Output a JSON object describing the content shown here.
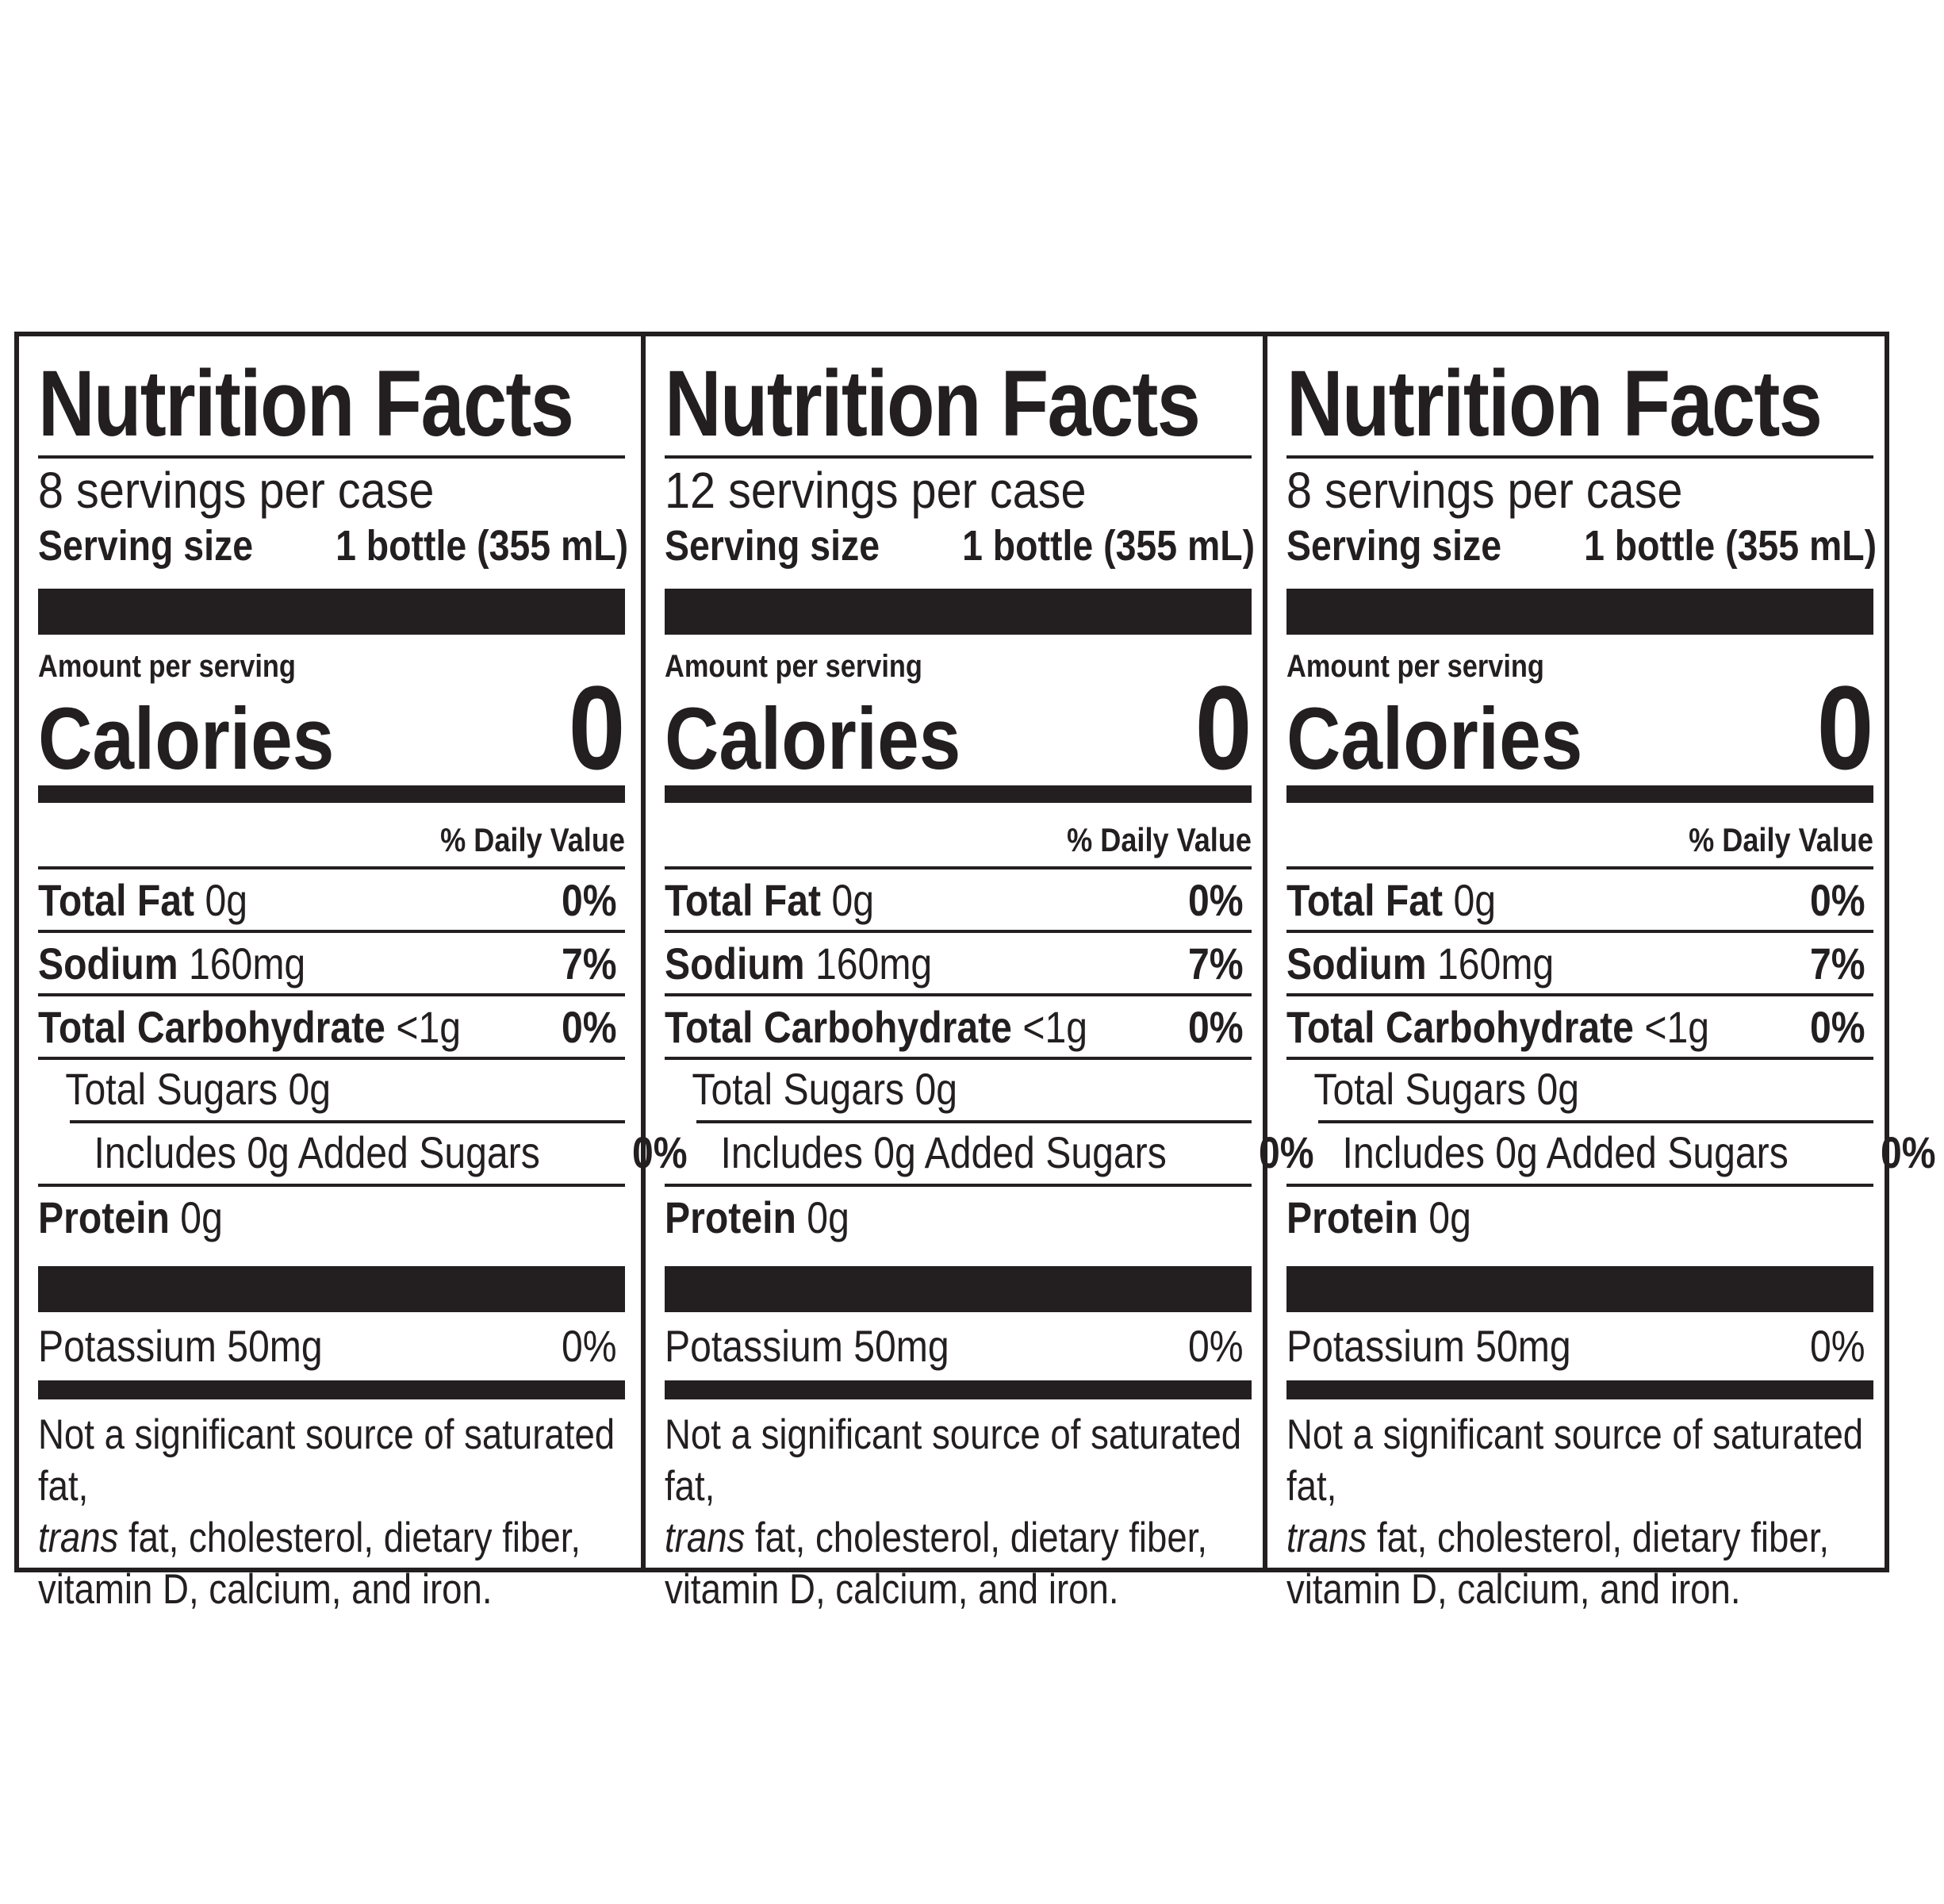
{
  "panels": [
    {
      "title": "Nutrition Facts",
      "servings_per_container": "8 servings per case",
      "serving_size_label": "Serving size",
      "serving_size_value": "1 bottle (355 mL)",
      "amount_per_serving": "Amount per serving",
      "calories_label": "Calories",
      "calories_value": "0",
      "daily_value_header": "% Daily Value",
      "total_fat": {
        "label": "Total Fat",
        "amount": "0g",
        "dv": "0%"
      },
      "sodium": {
        "label": "Sodium",
        "amount": "160mg",
        "dv": "7%"
      },
      "total_carbohydrate": {
        "label": "Total Carbohydrate",
        "amount": "<1g",
        "dv": "0%"
      },
      "total_sugars": {
        "label": "Total Sugars 0g"
      },
      "added_sugars": {
        "label": "Includes 0g Added Sugars",
        "dv": "0%"
      },
      "protein": {
        "label": "Protein",
        "amount": "0g"
      },
      "potassium": {
        "label": "Potassium 50mg",
        "dv": "0%"
      },
      "footnote_part1": "Not a significant source of saturated fat,",
      "footnote_trans": "trans",
      "footnote_part2": " fat, cholesterol, dietary fiber,",
      "footnote_part3": "vitamin D, calcium, and iron."
    },
    {
      "title": "Nutrition Facts",
      "servings_per_container": "12 servings per case",
      "serving_size_label": "Serving size",
      "serving_size_value": "1 bottle (355 mL)",
      "amount_per_serving": "Amount per serving",
      "calories_label": "Calories",
      "calories_value": "0",
      "daily_value_header": "% Daily Value",
      "total_fat": {
        "label": "Total Fat",
        "amount": "0g",
        "dv": "0%"
      },
      "sodium": {
        "label": "Sodium",
        "amount": "160mg",
        "dv": "7%"
      },
      "total_carbohydrate": {
        "label": "Total Carbohydrate",
        "amount": "<1g",
        "dv": "0%"
      },
      "total_sugars": {
        "label": "Total Sugars 0g"
      },
      "added_sugars": {
        "label": "Includes 0g Added Sugars",
        "dv": "0%"
      },
      "protein": {
        "label": "Protein",
        "amount": "0g"
      },
      "potassium": {
        "label": "Potassium 50mg",
        "dv": "0%"
      },
      "footnote_part1": "Not a significant source of saturated fat,",
      "footnote_trans": "trans",
      "footnote_part2": " fat, cholesterol, dietary fiber,",
      "footnote_part3": "vitamin D, calcium, and iron."
    },
    {
      "title": "Nutrition Facts",
      "servings_per_container": "8 servings per case",
      "serving_size_label": "Serving size",
      "serving_size_value": "1 bottle (355 mL)",
      "amount_per_serving": "Amount per serving",
      "calories_label": "Calories",
      "calories_value": "0",
      "daily_value_header": "% Daily Value",
      "total_fat": {
        "label": "Total Fat",
        "amount": "0g",
        "dv": "0%"
      },
      "sodium": {
        "label": "Sodium",
        "amount": "160mg",
        "dv": "7%"
      },
      "total_carbohydrate": {
        "label": "Total Carbohydrate",
        "amount": "<1g",
        "dv": "0%"
      },
      "total_sugars": {
        "label": "Total Sugars 0g"
      },
      "added_sugars": {
        "label": "Includes 0g Added Sugars",
        "dv": "0%"
      },
      "protein": {
        "label": "Protein",
        "amount": "0g"
      },
      "potassium": {
        "label": "Potassium 50mg",
        "dv": "0%"
      },
      "footnote_part1": "Not a significant source of saturated fat,",
      "footnote_trans": "trans",
      "footnote_part2": " fat, cholesterol, dietary fiber,",
      "footnote_part3": "vitamin D, calcium, and iron."
    }
  ]
}
